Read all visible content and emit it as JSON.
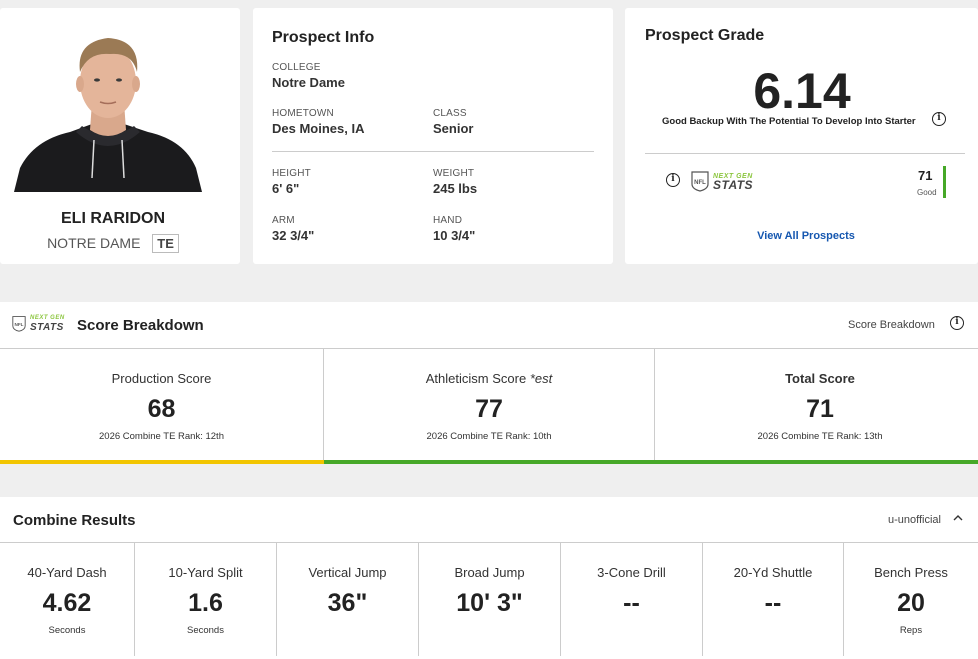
{
  "player": {
    "name": "ELI RARIDON",
    "school": "NOTRE DAME",
    "position": "TE"
  },
  "prospect_info": {
    "title": "Prospect Info",
    "college_label": "COLLEGE",
    "college": "Notre Dame",
    "hometown_label": "HOMETOWN",
    "hometown": "Des Moines, IA",
    "class_label": "CLASS",
    "class": "Senior",
    "height_label": "HEIGHT",
    "height": "6' 6\"",
    "weight_label": "WEIGHT",
    "weight": "245 lbs",
    "arm_label": "ARM",
    "arm": "32 3/4\"",
    "hand_label": "HAND",
    "hand": "10 3/4\""
  },
  "grade": {
    "title": "Prospect Grade",
    "value": "6.14",
    "description": "Good Backup With The Potential To Develop Into Starter",
    "ngs_logo_top": "NEXT GEN",
    "ngs_logo_bottom": "STATS",
    "ngs_score": "71",
    "ngs_score_label": "Good",
    "view_all": "View All Prospects",
    "colors": {
      "accent": "#46a828",
      "link": "#1557b0"
    }
  },
  "score_breakdown": {
    "title": "Score Breakdown",
    "right_label": "Score Breakdown",
    "production": {
      "label": "Production Score",
      "value": "68",
      "rank": "2026 Combine TE Rank: 12th",
      "color": "#f2c500"
    },
    "athleticism": {
      "label": "Athleticism Score",
      "suffix": "*est",
      "value": "77",
      "rank": "2026 Combine TE Rank: 10th",
      "color": "#46a828"
    },
    "total": {
      "label": "Total Score",
      "value": "71",
      "rank": "2026 Combine TE Rank: 13th"
    }
  },
  "combine": {
    "title": "Combine Results",
    "right_label": "u-unofficial",
    "drills": [
      {
        "label": "40-Yard Dash",
        "value": "4.62",
        "unit": "Seconds"
      },
      {
        "label": "10-Yard Split",
        "value": "1.6",
        "unit": "Seconds"
      },
      {
        "label": "Vertical Jump",
        "value": "36\"",
        "unit": ""
      },
      {
        "label": "Broad Jump",
        "value": "10' 3\"",
        "unit": ""
      },
      {
        "label": "3-Cone Drill",
        "value": "--",
        "unit": ""
      },
      {
        "label": "20-Yd Shuttle",
        "value": "--",
        "unit": ""
      },
      {
        "label": "Bench Press",
        "value": "20",
        "unit": "Reps"
      }
    ]
  }
}
